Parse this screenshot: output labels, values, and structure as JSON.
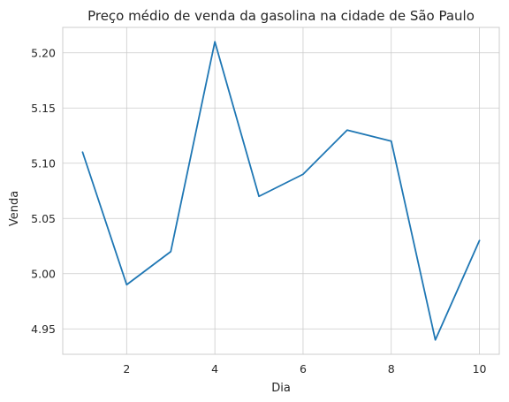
{
  "chart_data": {
    "type": "line",
    "title": "Preço médio de venda da gasolina na cidade de São Paulo",
    "xlabel": "Dia",
    "ylabel": "Venda",
    "x": [
      1,
      2,
      3,
      4,
      5,
      6,
      7,
      8,
      9,
      10
    ],
    "series": [
      {
        "values": [
          5.11,
          4.99,
          5.02,
          5.21,
          5.07,
          5.09,
          5.13,
          5.12,
          4.94,
          5.03
        ],
        "color": "#1f77b4"
      }
    ],
    "xlim": [
      0.55,
      10.45
    ],
    "ylim": [
      4.927,
      5.223
    ],
    "xticks": [
      2,
      4,
      6,
      8,
      10
    ],
    "xtick_labels": [
      "2",
      "4",
      "6",
      "8",
      "10"
    ],
    "yticks": [
      4.95,
      5.0,
      5.05,
      5.1,
      5.15,
      5.2
    ],
    "ytick_labels": [
      "4.95",
      "5.00",
      "5.05",
      "5.10",
      "5.15",
      "5.20"
    ],
    "grid": true,
    "legend": "none",
    "colors": {
      "line": "#1f77b4",
      "grid": "#cccccc",
      "text": "#262626",
      "background": "#ffffff"
    }
  }
}
